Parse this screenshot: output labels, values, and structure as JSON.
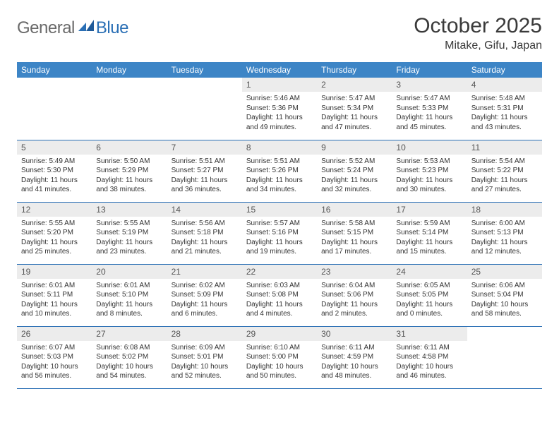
{
  "logo": {
    "text1": "General",
    "text2": "Blue"
  },
  "title": "October 2025",
  "location": "Mitake, Gifu, Japan",
  "colors": {
    "header_bg": "#3d85c6",
    "header_text": "#ffffff",
    "rule": "#2a6fb5",
    "daynum_bg": "#ececec",
    "logo_gray": "#6a6a6a",
    "logo_blue": "#2a6fb5"
  },
  "typography": {
    "title_fontsize": 30,
    "location_fontsize": 16,
    "weekday_fontsize": 12,
    "daynum_fontsize": 12,
    "body_fontsize": 10
  },
  "weekdays": [
    "Sunday",
    "Monday",
    "Tuesday",
    "Wednesday",
    "Thursday",
    "Friday",
    "Saturday"
  ],
  "weeks": [
    [
      {
        "empty": true
      },
      {
        "empty": true
      },
      {
        "empty": true
      },
      {
        "num": "1",
        "sunrise": "5:46 AM",
        "sunset": "5:36 PM",
        "daylight": "11 hours and 49 minutes."
      },
      {
        "num": "2",
        "sunrise": "5:47 AM",
        "sunset": "5:34 PM",
        "daylight": "11 hours and 47 minutes."
      },
      {
        "num": "3",
        "sunrise": "5:47 AM",
        "sunset": "5:33 PM",
        "daylight": "11 hours and 45 minutes."
      },
      {
        "num": "4",
        "sunrise": "5:48 AM",
        "sunset": "5:31 PM",
        "daylight": "11 hours and 43 minutes."
      }
    ],
    [
      {
        "num": "5",
        "sunrise": "5:49 AM",
        "sunset": "5:30 PM",
        "daylight": "11 hours and 41 minutes."
      },
      {
        "num": "6",
        "sunrise": "5:50 AM",
        "sunset": "5:29 PM",
        "daylight": "11 hours and 38 minutes."
      },
      {
        "num": "7",
        "sunrise": "5:51 AM",
        "sunset": "5:27 PM",
        "daylight": "11 hours and 36 minutes."
      },
      {
        "num": "8",
        "sunrise": "5:51 AM",
        "sunset": "5:26 PM",
        "daylight": "11 hours and 34 minutes."
      },
      {
        "num": "9",
        "sunrise": "5:52 AM",
        "sunset": "5:24 PM",
        "daylight": "11 hours and 32 minutes."
      },
      {
        "num": "10",
        "sunrise": "5:53 AM",
        "sunset": "5:23 PM",
        "daylight": "11 hours and 30 minutes."
      },
      {
        "num": "11",
        "sunrise": "5:54 AM",
        "sunset": "5:22 PM",
        "daylight": "11 hours and 27 minutes."
      }
    ],
    [
      {
        "num": "12",
        "sunrise": "5:55 AM",
        "sunset": "5:20 PM",
        "daylight": "11 hours and 25 minutes."
      },
      {
        "num": "13",
        "sunrise": "5:55 AM",
        "sunset": "5:19 PM",
        "daylight": "11 hours and 23 minutes."
      },
      {
        "num": "14",
        "sunrise": "5:56 AM",
        "sunset": "5:18 PM",
        "daylight": "11 hours and 21 minutes."
      },
      {
        "num": "15",
        "sunrise": "5:57 AM",
        "sunset": "5:16 PM",
        "daylight": "11 hours and 19 minutes."
      },
      {
        "num": "16",
        "sunrise": "5:58 AM",
        "sunset": "5:15 PM",
        "daylight": "11 hours and 17 minutes."
      },
      {
        "num": "17",
        "sunrise": "5:59 AM",
        "sunset": "5:14 PM",
        "daylight": "11 hours and 15 minutes."
      },
      {
        "num": "18",
        "sunrise": "6:00 AM",
        "sunset": "5:13 PM",
        "daylight": "11 hours and 12 minutes."
      }
    ],
    [
      {
        "num": "19",
        "sunrise": "6:01 AM",
        "sunset": "5:11 PM",
        "daylight": "11 hours and 10 minutes."
      },
      {
        "num": "20",
        "sunrise": "6:01 AM",
        "sunset": "5:10 PM",
        "daylight": "11 hours and 8 minutes."
      },
      {
        "num": "21",
        "sunrise": "6:02 AM",
        "sunset": "5:09 PM",
        "daylight": "11 hours and 6 minutes."
      },
      {
        "num": "22",
        "sunrise": "6:03 AM",
        "sunset": "5:08 PM",
        "daylight": "11 hours and 4 minutes."
      },
      {
        "num": "23",
        "sunrise": "6:04 AM",
        "sunset": "5:06 PM",
        "daylight": "11 hours and 2 minutes."
      },
      {
        "num": "24",
        "sunrise": "6:05 AM",
        "sunset": "5:05 PM",
        "daylight": "11 hours and 0 minutes."
      },
      {
        "num": "25",
        "sunrise": "6:06 AM",
        "sunset": "5:04 PM",
        "daylight": "10 hours and 58 minutes."
      }
    ],
    [
      {
        "num": "26",
        "sunrise": "6:07 AM",
        "sunset": "5:03 PM",
        "daylight": "10 hours and 56 minutes."
      },
      {
        "num": "27",
        "sunrise": "6:08 AM",
        "sunset": "5:02 PM",
        "daylight": "10 hours and 54 minutes."
      },
      {
        "num": "28",
        "sunrise": "6:09 AM",
        "sunset": "5:01 PM",
        "daylight": "10 hours and 52 minutes."
      },
      {
        "num": "29",
        "sunrise": "6:10 AM",
        "sunset": "5:00 PM",
        "daylight": "10 hours and 50 minutes."
      },
      {
        "num": "30",
        "sunrise": "6:11 AM",
        "sunset": "4:59 PM",
        "daylight": "10 hours and 48 minutes."
      },
      {
        "num": "31",
        "sunrise": "6:11 AM",
        "sunset": "4:58 PM",
        "daylight": "10 hours and 46 minutes."
      },
      {
        "empty": true
      }
    ]
  ],
  "labels": {
    "sunrise": "Sunrise:",
    "sunset": "Sunset:",
    "daylight": "Daylight:"
  }
}
